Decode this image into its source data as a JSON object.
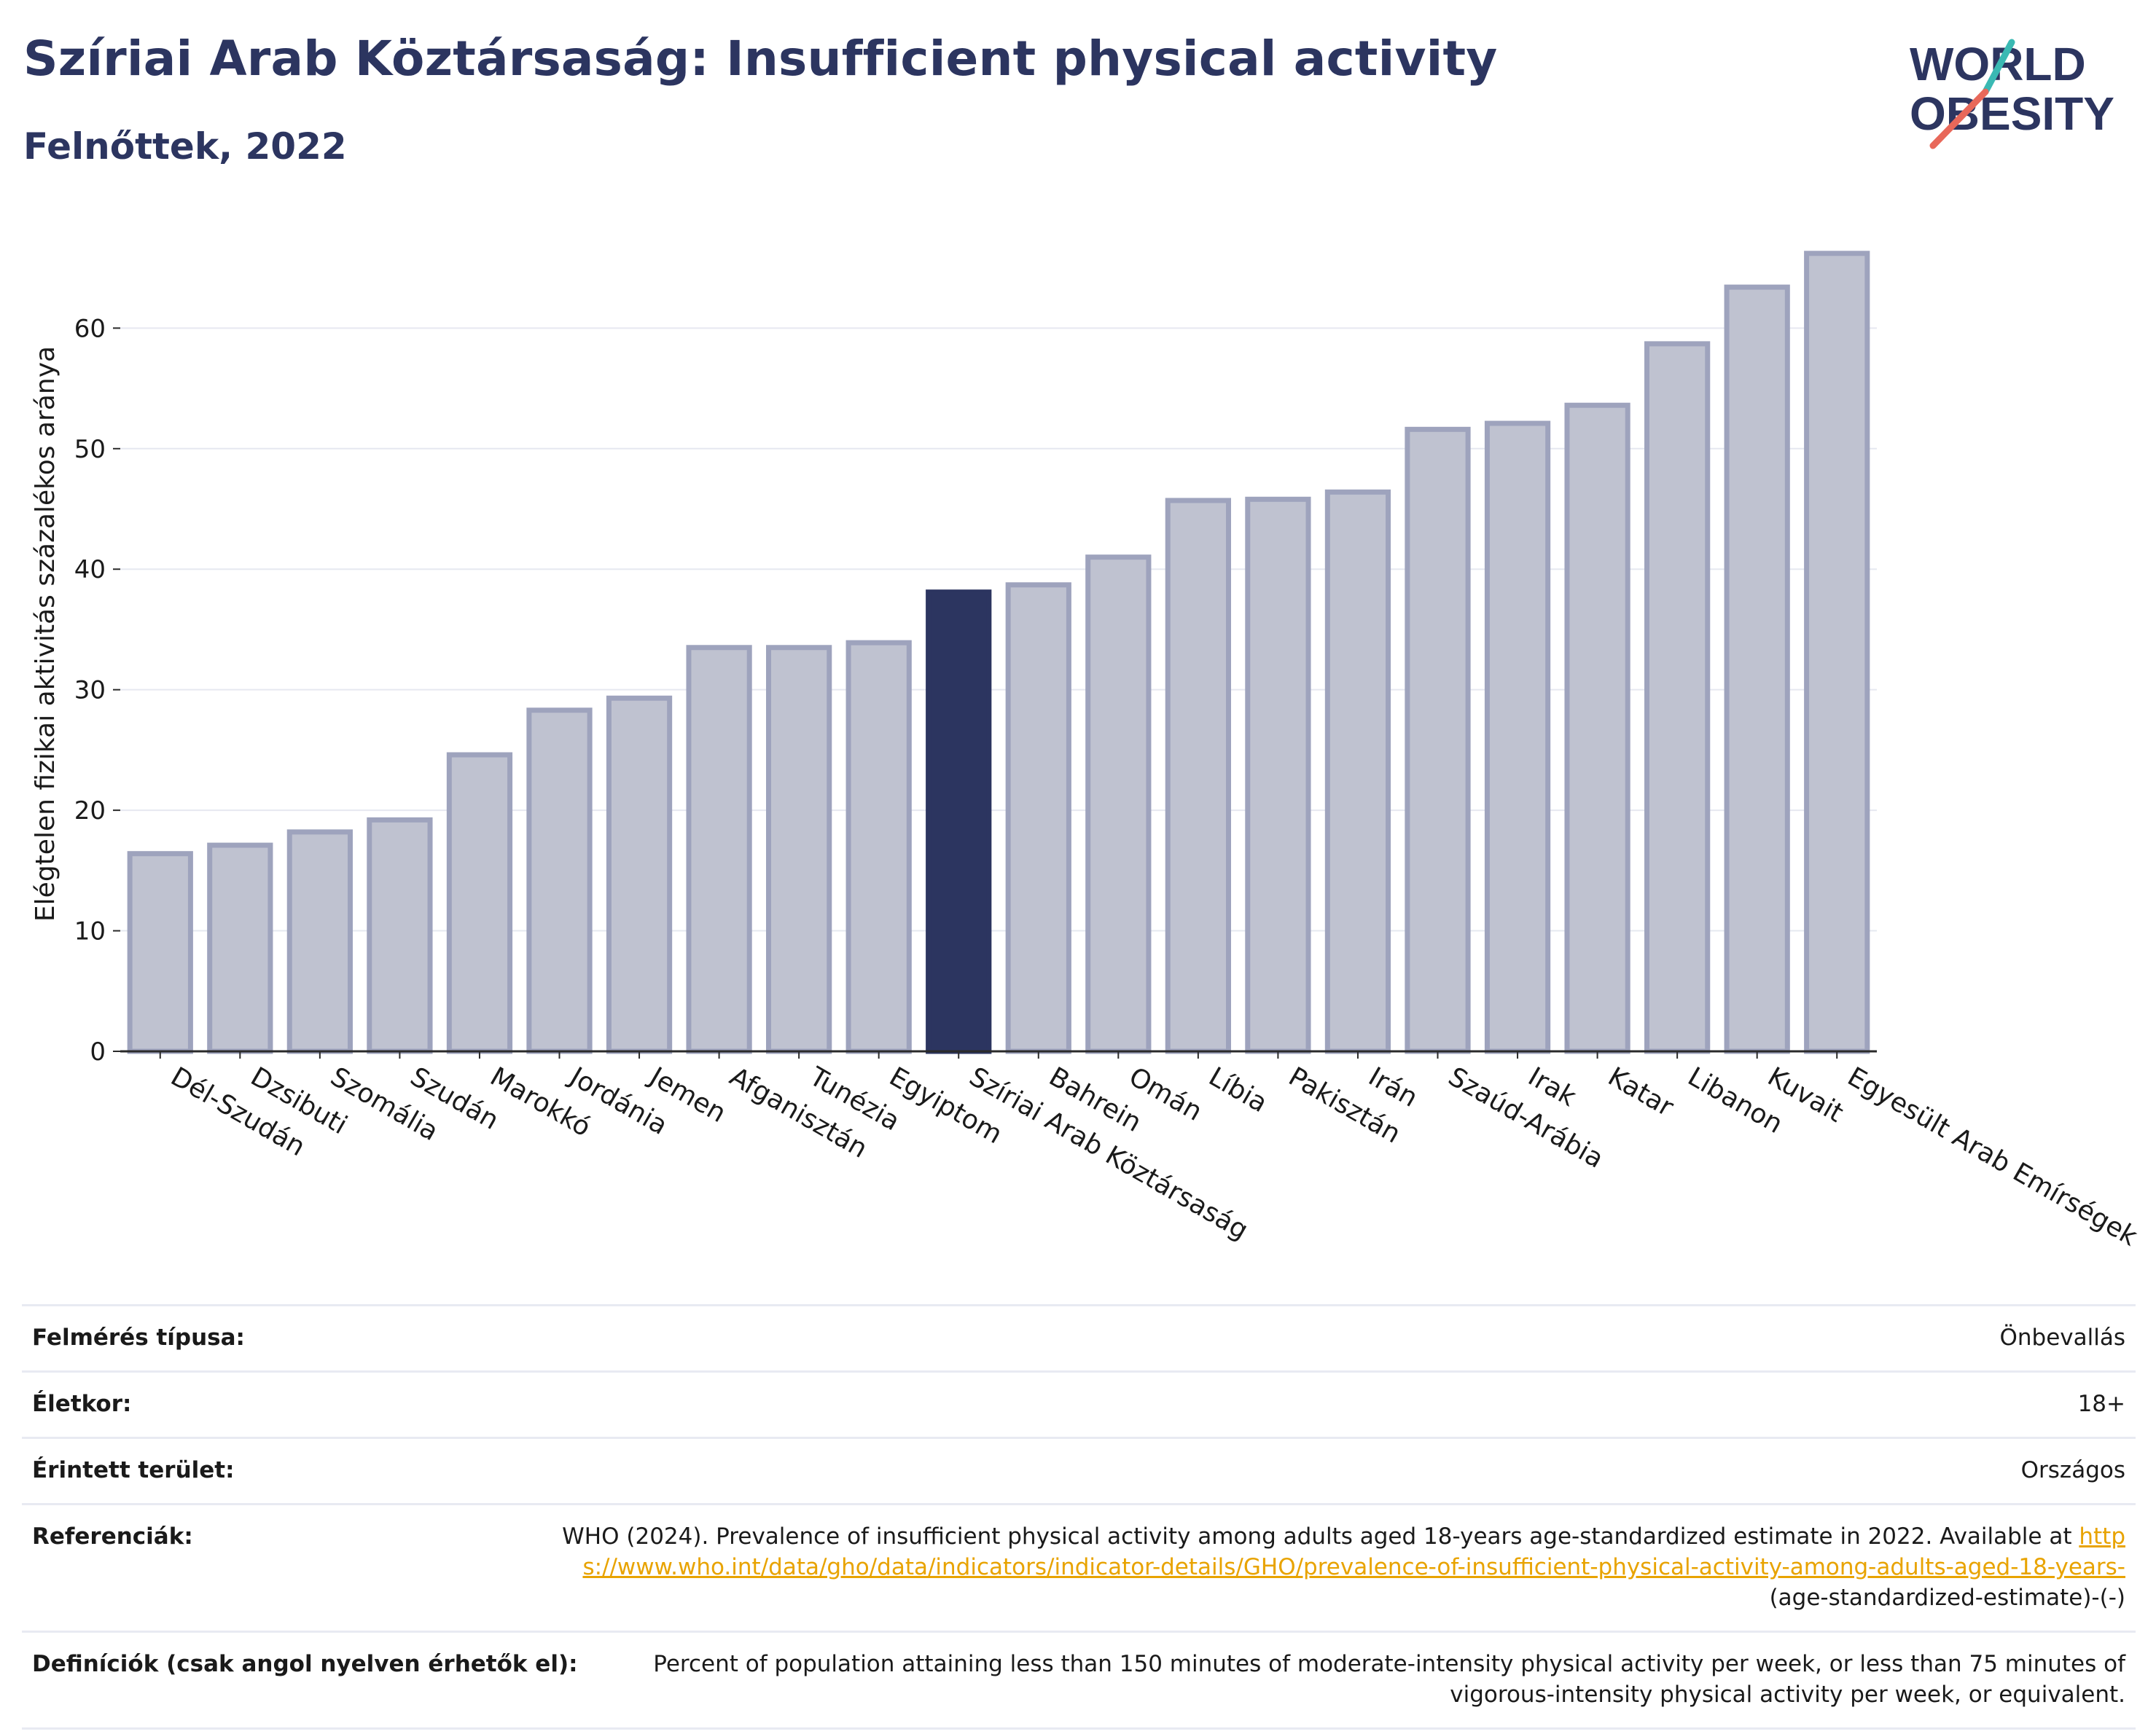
{
  "title": "Szíriai Arab Köztársaság: Insufficient physical activity",
  "subtitle": "Felnőttek, 2022",
  "logo": {
    "line1": "WORLD",
    "line2": "OBESITY",
    "colors": {
      "text": "#2c3560",
      "slash_teal": "#3ab9b3",
      "slash_orange": "#e8685a"
    }
  },
  "colors": {
    "bar": "#bfc2d0",
    "bar_border": "#9ea3bd",
    "highlight": "#2c3560",
    "grid": "#e6e8f0",
    "axis": "#2a2a2a",
    "link": "#e8a300"
  },
  "chart_data": {
    "type": "bar",
    "ylabel": "Elégtelen fizikai aktivitás százalékos aránya",
    "xlabel": "",
    "ylim": [
      0,
      68
    ],
    "yticks": [
      0,
      10,
      20,
      30,
      40,
      50,
      60
    ],
    "grid": true,
    "highlight": "Szíriai Arab Köztársaság",
    "categories": [
      "Dél-Szudán",
      "Dzsibuti",
      "Szomália",
      "Szudán",
      "Marokkó",
      "Jordánia",
      "Jemen",
      "Afganisztán",
      "Tunézia",
      "Egyiptom",
      "Szíriai Arab Köztársaság",
      "Bahrein",
      "Omán",
      "Líbia",
      "Pakisztán",
      "Irán",
      "Szaúd-Arábia",
      "Irak",
      "Katar",
      "Libanon",
      "Kuvait",
      "Egyesült Arab Emírségek"
    ],
    "values": [
      16.4,
      17.1,
      18.2,
      19.2,
      24.6,
      28.3,
      29.3,
      33.5,
      33.5,
      33.9,
      38.1,
      38.7,
      41.0,
      45.7,
      45.8,
      46.4,
      51.6,
      52.1,
      53.6,
      58.7,
      63.4,
      66.2
    ]
  },
  "meta": [
    {
      "label": "Felmérés típusa:",
      "value": "Önbevallás"
    },
    {
      "label": "Életkor:",
      "value": "18+"
    },
    {
      "label": "Érintett terület:",
      "value": "Országos"
    },
    {
      "label": "Referenciák:",
      "value_pre": "WHO (2024). Prevalence of insufficient physical activity among adults aged 18-years age-standardized estimate in 2022. Available at",
      "link": "https://www.who.int/data/gho/data/indicators/indicator-details/GHO/prevalence-of-insufficient-physical-activity-among-adults-aged-18-years-",
      "value_post": "(age-standardized-estimate)-(-)"
    },
    {
      "label": "Definíciók (csak angol nyelven érhetők el):",
      "value": "Percent of population attaining less than 150 minutes of moderate-intensity physical activity per week, or less than 75 minutes of vigorous-intensity physical activity per week, or equivalent."
    }
  ]
}
